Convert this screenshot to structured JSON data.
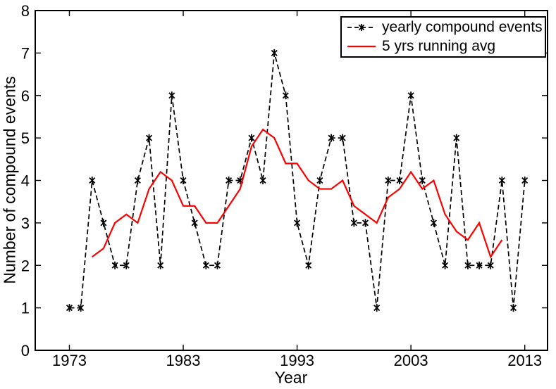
{
  "chart_data": {
    "type": "line",
    "title": "",
    "xlabel": "Year",
    "ylabel": "Number of compound events",
    "xlim": [
      1970,
      2015
    ],
    "ylim": [
      0,
      8
    ],
    "xticks": [
      1973,
      1983,
      1993,
      2003,
      2013
    ],
    "yticks": [
      0,
      1,
      2,
      3,
      4,
      5,
      6,
      7,
      8
    ],
    "grid": false,
    "background_color": "#FFFFFF",
    "axis_color": "#000000",
    "legend_position": "top-right",
    "series": [
      {
        "name": "yearly compound events",
        "color": "#000000",
        "line_style": "dashed",
        "line_width": 1.7,
        "marker": "asterisk",
        "x": [
          1973,
          1974,
          1975,
          1976,
          1977,
          1978,
          1979,
          1980,
          1981,
          1982,
          1983,
          1984,
          1985,
          1986,
          1987,
          1988,
          1989,
          1990,
          1991,
          1992,
          1993,
          1994,
          1995,
          1996,
          1997,
          1998,
          1999,
          2000,
          2001,
          2002,
          2003,
          2004,
          2005,
          2006,
          2007,
          2008,
          2009,
          2010,
          2011,
          2012,
          2013
        ],
        "values": [
          1,
          1,
          4,
          3,
          2,
          2,
          4,
          5,
          2,
          6,
          4,
          3,
          2,
          2,
          4,
          4,
          5,
          4,
          7,
          6,
          3,
          2,
          4,
          5,
          5,
          3,
          3,
          1,
          4,
          4,
          6,
          4,
          3,
          2,
          5,
          2,
          2,
          2,
          4,
          1,
          4
        ]
      },
      {
        "name": "5 yrs running avg",
        "color": "#FF0000",
        "line_style": "solid",
        "line_width": 2.2,
        "marker": "none",
        "x": [
          1975,
          1976,
          1977,
          1978,
          1979,
          1980,
          1981,
          1982,
          1983,
          1984,
          1985,
          1986,
          1987,
          1988,
          1989,
          1990,
          1991,
          1992,
          1993,
          1994,
          1995,
          1996,
          1997,
          1998,
          1999,
          2000,
          2001,
          2002,
          2003,
          2004,
          2005,
          2006,
          2007,
          2008,
          2009,
          2010,
          2011
        ],
        "values": [
          2.2,
          2.4,
          3,
          3.2,
          3,
          3.8,
          4.2,
          4,
          3.4,
          3.4,
          3,
          3,
          3.4,
          3.8,
          4.8,
          5.2,
          5,
          4.4,
          4.4,
          4,
          3.8,
          3.8,
          4,
          3.4,
          3.2,
          3,
          3.6,
          3.8,
          4.2,
          3.8,
          4,
          3.2,
          2.8,
          2.6,
          3,
          2.2,
          2.6
        ]
      }
    ]
  }
}
